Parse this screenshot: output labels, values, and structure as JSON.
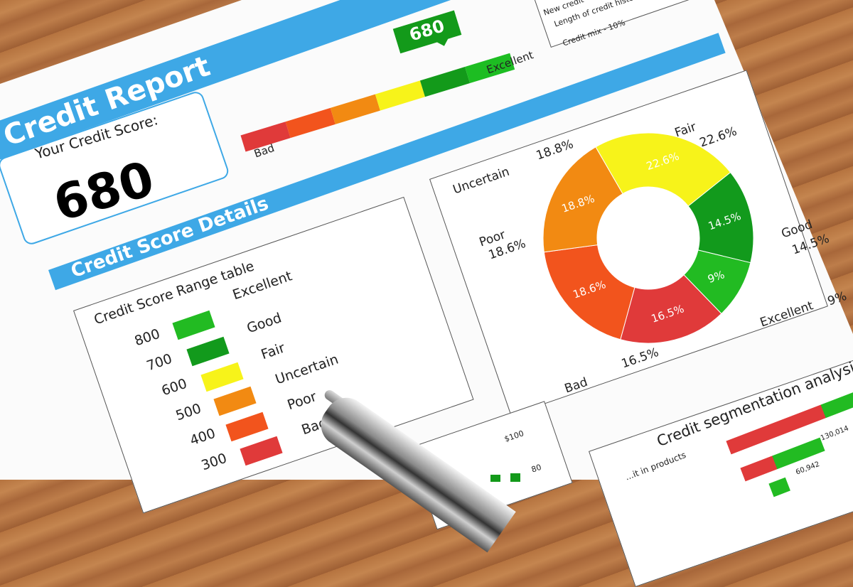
{
  "header": {
    "title": "Credit Report"
  },
  "score_box": {
    "label": "Your Credit Score:",
    "value": "680"
  },
  "score_bar": {
    "value": "680",
    "low_label": "Bad",
    "high_label": "Excellent",
    "segments": [
      "#e03a3a",
      "#f2541d",
      "#f28a12",
      "#f7f31a",
      "#139a1a",
      "#1dbd22"
    ]
  },
  "factors_box": {
    "lines": [
      "New credit - ...",
      "Length of credit history",
      "Credit mix - 10%"
    ]
  },
  "details": {
    "title": "Credit Score Details"
  },
  "range_table": {
    "title": "Credit Score Range table",
    "labels": [
      "Excellent",
      "Good",
      "Fair",
      "Uncertain",
      "Poor",
      "Bad"
    ],
    "scale": [
      "800",
      "700",
      "600",
      "500",
      "400",
      "300"
    ],
    "colors": [
      "#22bb22",
      "#129a1c",
      "#f7f31a",
      "#f28a12",
      "#f2541d",
      "#e03a3a"
    ]
  },
  "chart_data": [
    {
      "type": "pie",
      "donut": true,
      "categories": [
        "Fair",
        "Good",
        "Excellent",
        "Bad",
        "Poor",
        "Uncertain"
      ],
      "values": [
        22.6,
        14.5,
        9,
        16.5,
        18.6,
        18.8
      ],
      "labels": [
        "22.6%",
        "14.5%",
        "9%",
        "16.5%",
        "18.6%",
        "18.8%"
      ],
      "colors": [
        "#f7f31a",
        "#129a1c",
        "#22bb22",
        "#e03a3a",
        "#f2541d",
        "#f28a12"
      ]
    }
  ],
  "segmentation": {
    "title": "Credit segmentation analysis",
    "row_label": "...it in products",
    "values": [
      "130,014",
      "60,942"
    ]
  },
  "small_chart": {
    "ticks": [
      "$100",
      "80"
    ]
  }
}
